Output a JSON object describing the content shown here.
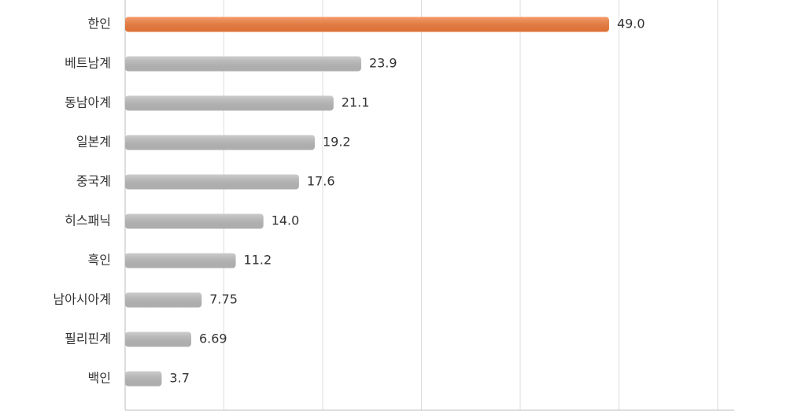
{
  "chart_data": {
    "type": "hbar",
    "categories": [
      "한인",
      "베트남계",
      "동남아계",
      "일본계",
      "중국계",
      "히스패닉",
      "흑인",
      "남아시아계",
      "필리핀계",
      "백인"
    ],
    "values": [
      49.0,
      23.9,
      21.1,
      19.2,
      17.6,
      14.0,
      11.2,
      7.75,
      6.69,
      3.7
    ],
    "value_labels": [
      "49.0",
      "23.9",
      "21.1",
      "19.2",
      "17.6",
      "14.0",
      "11.2",
      "7.75",
      "6.69",
      "3.7"
    ],
    "colors": [
      "#f47d3b",
      "#bdbdbd",
      "#bdbdbd",
      "#bdbdbd",
      "#bdbdbd",
      "#bdbdbd",
      "#bdbdbd",
      "#bdbdbd",
      "#bdbdbd",
      "#bdbdbd"
    ],
    "xlim": [
      0,
      60
    ],
    "xticks": [
      10,
      20,
      30,
      40,
      50,
      60
    ],
    "grid": true
  }
}
